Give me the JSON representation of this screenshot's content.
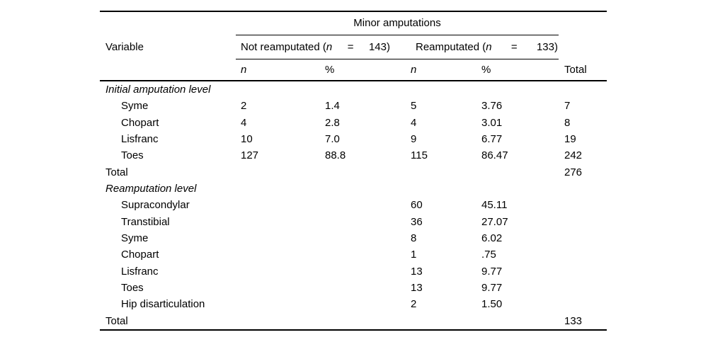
{
  "table": {
    "title": "Minor amputations",
    "variable_header": "Variable",
    "groups": [
      {
        "prefix": "Not reamputated (",
        "var": "n",
        "equals": "=",
        "value": "143)"
      },
      {
        "prefix": "Reamputated (",
        "var": "n",
        "equals": "=",
        "value": "133)"
      }
    ],
    "columns": {
      "n1": "n",
      "pct1": "%",
      "n2": "n",
      "pct2": "%",
      "total": "Total"
    },
    "rows": [
      {
        "kind": "section",
        "label": "Initial amputation level",
        "n1": "",
        "pct1": "",
        "n2": "",
        "pct2": "",
        "total": ""
      },
      {
        "kind": "item",
        "label": "Syme",
        "n1": "2",
        "pct1": "1.4",
        "n2": "5",
        "pct2": "3.76",
        "total": "7"
      },
      {
        "kind": "item",
        "label": "Chopart",
        "n1": "4",
        "pct1": "2.8",
        "n2": "4",
        "pct2": "3.01",
        "total": "8"
      },
      {
        "kind": "item",
        "label": "Lisfranc",
        "n1": "10",
        "pct1": "7.0",
        "n2": "9",
        "pct2": "6.77",
        "total": "19"
      },
      {
        "kind": "item",
        "label": "Toes",
        "n1": "127",
        "pct1": "88.8",
        "n2": "115",
        "pct2": "86.47",
        "total": "242"
      },
      {
        "kind": "total",
        "label": "Total",
        "n1": "",
        "pct1": "",
        "n2": "",
        "pct2": "",
        "total": "276"
      },
      {
        "kind": "section",
        "label": "Reamputation level",
        "n1": "",
        "pct1": "",
        "n2": "",
        "pct2": "",
        "total": ""
      },
      {
        "kind": "item",
        "label": "Supracondylar",
        "n1": "",
        "pct1": "",
        "n2": "60",
        "pct2": "45.11",
        "total": ""
      },
      {
        "kind": "item",
        "label": "Transtibial",
        "n1": "",
        "pct1": "",
        "n2": "36",
        "pct2": "27.07",
        "total": ""
      },
      {
        "kind": "item",
        "label": "Syme",
        "n1": "",
        "pct1": "",
        "n2": "8",
        "pct2": "6.02",
        "total": ""
      },
      {
        "kind": "item",
        "label": "Chopart",
        "n1": "",
        "pct1": "",
        "n2": "1",
        "pct2": ".75",
        "total": ""
      },
      {
        "kind": "item",
        "label": "Lisfranc",
        "n1": "",
        "pct1": "",
        "n2": "13",
        "pct2": "9.77",
        "total": ""
      },
      {
        "kind": "item",
        "label": "Toes",
        "n1": "",
        "pct1": "",
        "n2": "13",
        "pct2": "9.77",
        "total": ""
      },
      {
        "kind": "item",
        "label": "Hip disarticulation",
        "n1": "",
        "pct1": "",
        "n2": "2",
        "pct2": "1.50",
        "total": ""
      },
      {
        "kind": "total",
        "label": "Total",
        "n1": "",
        "pct1": "",
        "n2": "",
        "pct2": "",
        "total": "133"
      }
    ]
  }
}
